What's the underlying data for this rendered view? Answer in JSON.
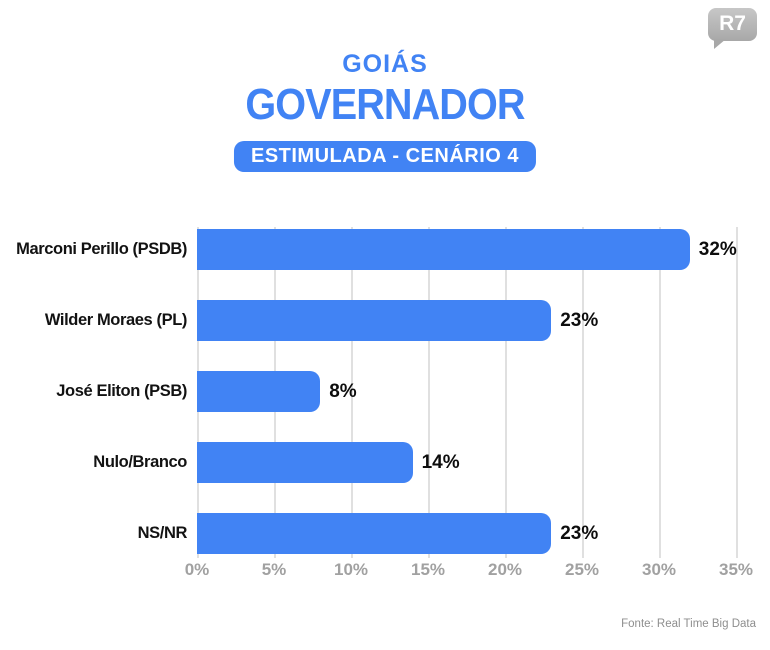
{
  "logo": {
    "text": "R7"
  },
  "header": {
    "state": "GOIÁS",
    "office": "GOVERNADOR",
    "badge": "ESTIMULADA - CENÁRIO 4"
  },
  "chart_data": {
    "type": "bar",
    "orientation": "horizontal",
    "title": "GOVERNADOR — GOIÁS — ESTIMULADA - CENÁRIO 4",
    "categories": [
      "Marconi Perillo (PSDB)",
      "Wilder Moraes (PL)",
      "José Eliton (PSB)",
      "Nulo/Branco",
      "NS/NR"
    ],
    "values": [
      32,
      23,
      8,
      14,
      23
    ],
    "value_labels": [
      "32%",
      "23%",
      "8%",
      "14%",
      "23%"
    ],
    "x_tick_labels": [
      "0%",
      "5%",
      "10%",
      "15%",
      "20%",
      "25%",
      "30%",
      "35%"
    ],
    "x_tick_values": [
      0,
      5,
      10,
      15,
      20,
      25,
      30,
      35
    ],
    "xlim": [
      0,
      35
    ],
    "grid": true,
    "legend": false,
    "bar_color": "#4183f4"
  },
  "footer": {
    "source": "Fonte: Real Time Big Data"
  },
  "colors": {
    "accent_blue": "#4183f4",
    "label_dark": "#121212",
    "axis_gray": "#a1a1a1",
    "grid_gray": "#e0e0e0",
    "logo_gray": "#a8a8a8",
    "background": "#ffffff"
  }
}
